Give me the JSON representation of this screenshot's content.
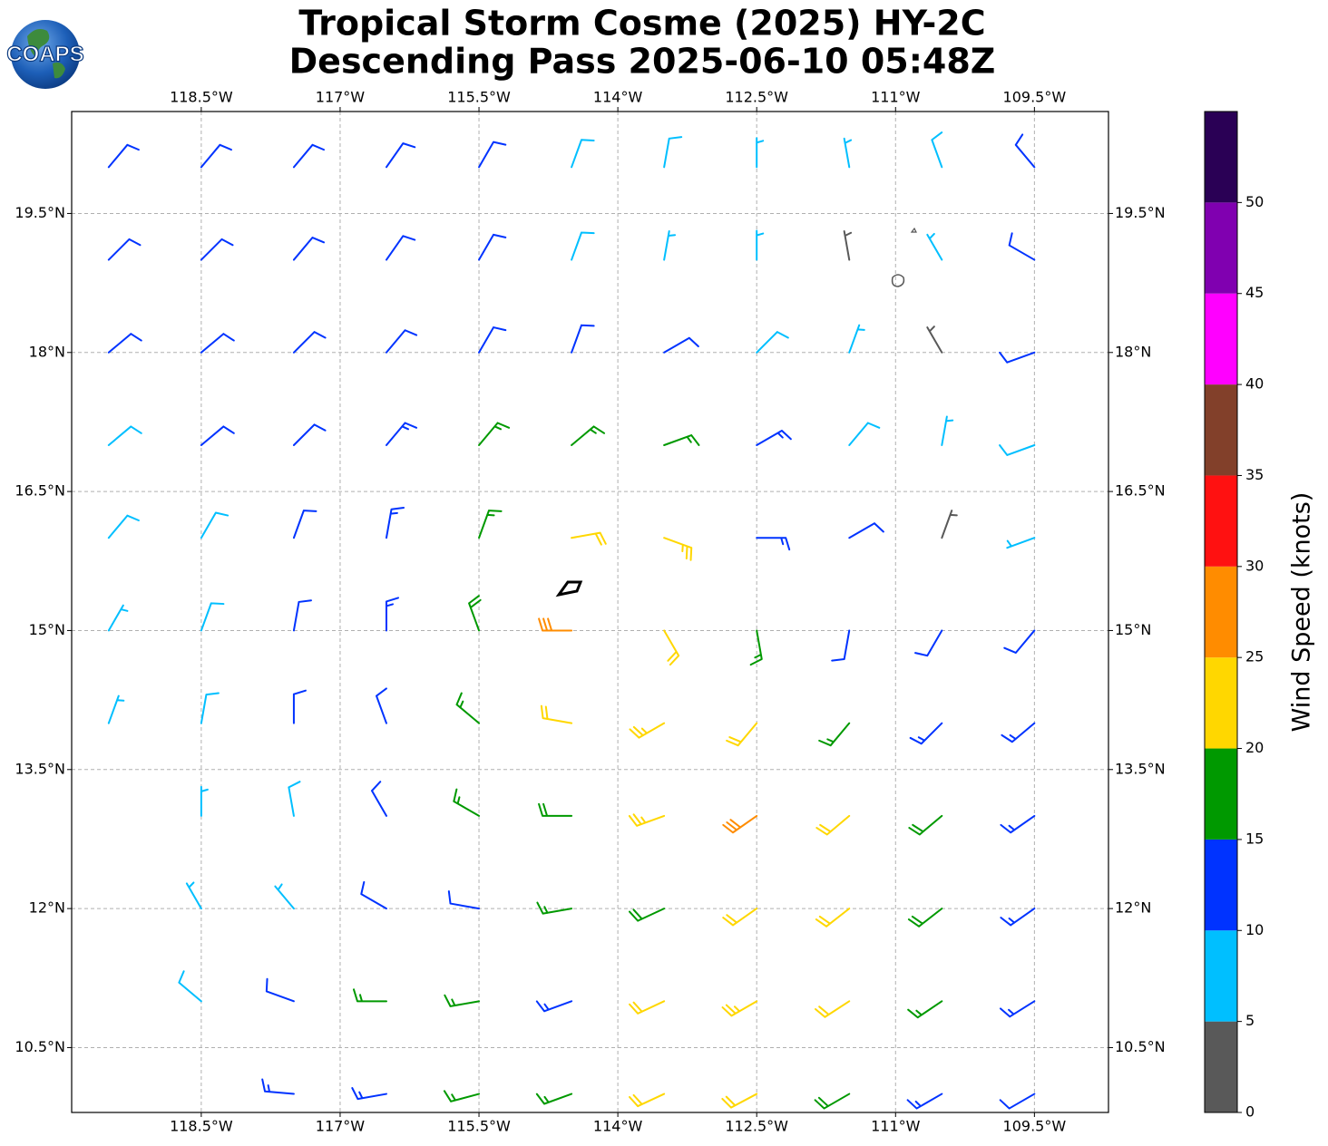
{
  "logo": "COAPS",
  "chart_data": {
    "type": "barbs",
    "title": "Tropical Storm Cosme (2025) HY-2C",
    "subtitle": "Descending Pass 2025-06-10 05:48Z",
    "xlim": [
      -119.9,
      -108.7
    ],
    "ylim": [
      9.8,
      20.6
    ],
    "xticks": [
      {
        "value": -118.5,
        "label": "118.5°W"
      },
      {
        "value": -117,
        "label": "117°W"
      },
      {
        "value": -115.5,
        "label": "115.5°W"
      },
      {
        "value": -114,
        "label": "114°W"
      },
      {
        "value": -112.5,
        "label": "112.5°W"
      },
      {
        "value": -111,
        "label": "111°W"
      },
      {
        "value": -109.5,
        "label": "109.5°W"
      }
    ],
    "yticks": [
      {
        "value": 10.5,
        "label": "10.5°N"
      },
      {
        "value": 12,
        "label": "12°N"
      },
      {
        "value": 13.5,
        "label": "13.5°N"
      },
      {
        "value": 15,
        "label": "15°N"
      },
      {
        "value": 16.5,
        "label": "16.5°N"
      },
      {
        "value": 18,
        "label": "18°N"
      },
      {
        "value": 19.5,
        "label": "19.5°N"
      }
    ],
    "grid": true,
    "barbs": {
      "lon": [
        -119.5,
        -118.5,
        -117.5,
        -116.5,
        -115.5,
        -114.5,
        -113.5,
        -112.5,
        -111.5,
        -110.5,
        -109.5
      ],
      "lat": [
        20,
        19,
        18,
        17,
        16,
        15,
        14,
        13,
        12,
        11,
        10
      ],
      "speed": [
        [
          12,
          12,
          12,
          11,
          10,
          9,
          8,
          7,
          7,
          8,
          12
        ],
        [
          12,
          12,
          12,
          11,
          10,
          9,
          7,
          7,
          4,
          7,
          10
        ],
        [
          10,
          12,
          12,
          11,
          10,
          12,
          11,
          8,
          6,
          4,
          12
        ],
        [
          9,
          10,
          12,
          13,
          16,
          17,
          16,
          13,
          9,
          7,
          8
        ],
        [
          8,
          8,
          10,
          13,
          17,
          22,
          24,
          14,
          12,
          4,
          5
        ],
        [
          7,
          8,
          10,
          14,
          19,
          28,
          22,
          15,
          12,
          12,
          12
        ],
        [
          7,
          8,
          10,
          12,
          17,
          22,
          24,
          20,
          16,
          14,
          13
        ],
        [
          null,
          7,
          8,
          11,
          16,
          18,
          24,
          28,
          22,
          18,
          14
        ],
        [
          null,
          5,
          7,
          10,
          12,
          16,
          18,
          22,
          20,
          19,
          14
        ],
        [
          null,
          8,
          11,
          17,
          16,
          14,
          20,
          24,
          22,
          17,
          13
        ],
        [
          null,
          null,
          13,
          13,
          17,
          16,
          20,
          22,
          18,
          14,
          12
        ]
      ],
      "direction": [
        [
          40,
          40,
          40,
          35,
          30,
          20,
          10,
          0,
          350,
          340,
          320
        ],
        [
          45,
          45,
          40,
          35,
          30,
          20,
          10,
          0,
          350,
          330,
          300
        ],
        [
          50,
          50,
          45,
          40,
          30,
          20,
          60,
          45,
          20,
          330,
          250
        ],
        [
          50,
          50,
          45,
          40,
          40,
          50,
          70,
          60,
          40,
          10,
          250
        ],
        [
          40,
          30,
          20,
          10,
          20,
          80,
          110,
          90,
          60,
          20,
          250
        ],
        [
          30,
          20,
          10,
          0,
          340,
          270,
          150,
          170,
          190,
          210,
          220
        ],
        [
          20,
          10,
          0,
          340,
          310,
          280,
          240,
          220,
          220,
          225,
          230
        ],
        [
          null,
          0,
          350,
          330,
          300,
          270,
          250,
          235,
          230,
          230,
          235
        ],
        [
          null,
          330,
          320,
          300,
          280,
          260,
          245,
          235,
          232,
          232,
          235
        ],
        [
          null,
          310,
          290,
          270,
          260,
          250,
          245,
          240,
          237,
          236,
          238
        ],
        [
          null,
          null,
          275,
          260,
          255,
          250,
          245,
          242,
          240,
          240,
          240
        ]
      ]
    },
    "colorbar": {
      "label": "Wind Speed (knots)",
      "bounds": [
        0,
        5,
        10,
        15,
        20,
        25,
        30,
        35,
        40,
        45,
        50,
        55
      ],
      "colors": [
        "#595959",
        "#00bfff",
        "#0033ff",
        "#009900",
        "#ffd700",
        "#ff8c00",
        "#ff1111",
        "#82402a",
        "#ff00ff",
        "#8000b0",
        "#2a0055"
      ],
      "ticks": [
        0,
        5,
        10,
        15,
        20,
        25,
        30,
        35,
        40,
        45,
        50
      ]
    }
  }
}
